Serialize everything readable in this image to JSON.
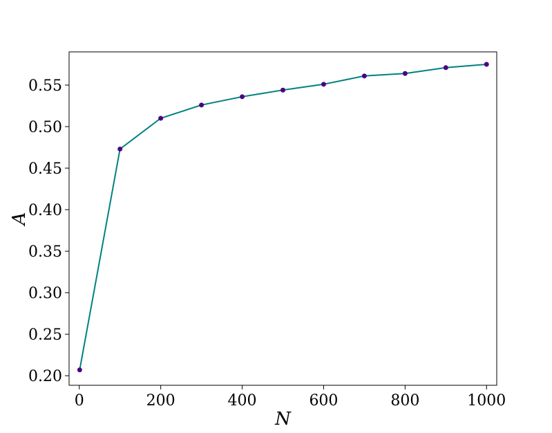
{
  "chart_data": {
    "type": "line",
    "title": "",
    "xlabel": "N",
    "ylabel": "A",
    "xlim": [
      -25,
      1025
    ],
    "ylim": [
      0.1885,
      0.59
    ],
    "grid": false,
    "legend": "none",
    "x_ticks": [
      0,
      200,
      400,
      600,
      800,
      1000
    ],
    "x_tick_labels": [
      "0",
      "200",
      "400",
      "600",
      "800",
      "1000"
    ],
    "y_ticks": [
      0.2,
      0.25,
      0.3,
      0.35,
      0.4,
      0.45,
      0.5,
      0.55
    ],
    "y_tick_labels": [
      "0.20",
      "0.25",
      "0.30",
      "0.35",
      "0.40",
      "0.45",
      "0.50",
      "0.55"
    ],
    "series": [
      {
        "x": [
          1,
          100,
          200,
          300,
          400,
          500,
          600,
          700,
          800,
          900,
          1000
        ],
        "values": [
          0.207,
          0.473,
          0.51,
          0.526,
          0.536,
          0.544,
          0.551,
          0.561,
          0.564,
          0.571,
          0.575
        ],
        "line_color": "#008080",
        "marker_color": "#4b0082"
      }
    ]
  }
}
